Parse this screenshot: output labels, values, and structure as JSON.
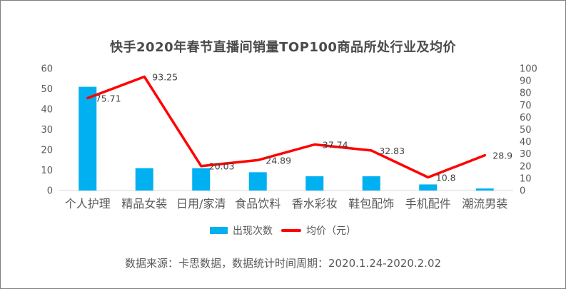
{
  "title": "快手2020年春节直播间销量TOP100商品所处行业及均价",
  "source_note": "数据来源：卡思数据，数据统计时间周期：2020.1.24-2020.2.02",
  "colors": {
    "bar": "#00b0f0",
    "line": "#ff0000",
    "title_text": "#4a4a4a",
    "axis_text": "#595959",
    "data_label_text": "#404040",
    "baseline": "#d9d9d9",
    "frame_border": "#7f7f7f"
  },
  "chart_data": {
    "type": "combo",
    "categories": [
      "个人护理",
      "精品女装",
      "日用/家清",
      "食品饮料",
      "香水彩妆",
      "鞋包配饰",
      "手机配件",
      "潮流男装"
    ],
    "series": [
      {
        "name": "出现次数",
        "type": "bar",
        "axis": "left",
        "values": [
          51,
          11,
          11,
          9,
          7,
          7,
          3,
          1
        ]
      },
      {
        "name": "均价（元）",
        "type": "line",
        "axis": "right",
        "values": [
          75.71,
          93.25,
          20.03,
          24.89,
          37.74,
          32.83,
          10.8,
          28.9
        ],
        "labels": [
          "75.71",
          "93.25",
          "20.03",
          "24.89",
          "37.74",
          "32.83",
          "10.8",
          "28.9"
        ]
      }
    ],
    "left_axis": {
      "min": 0,
      "max": 60,
      "step": 10,
      "ticks": [
        0,
        10,
        20,
        30,
        40,
        50,
        60
      ]
    },
    "right_axis": {
      "min": 0,
      "max": 100,
      "step": 10,
      "ticks": [
        0,
        10,
        20,
        30,
        40,
        50,
        60,
        70,
        80,
        90,
        100
      ]
    },
    "grid": false,
    "legend_position": "bottom",
    "data_labels_series": "均价（元）"
  }
}
